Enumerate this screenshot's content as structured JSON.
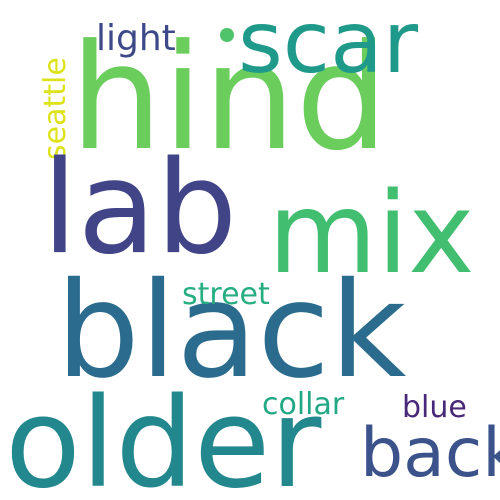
{
  "words": {
    "hind": {
      "text": "hind",
      "color": "#6acd5c"
    },
    "lab": {
      "text": "lab",
      "color": "#414487"
    },
    "mix": {
      "text": "mix",
      "color": "#42be71"
    },
    "black": {
      "text": "black",
      "color": "#2b6c8e"
    },
    "older": {
      "text": "older",
      "color": "#23888e"
    },
    "scar": {
      "text": "scar",
      "color": "#1f9a8a"
    },
    "back": {
      "text": "back",
      "color": "#3b528b"
    },
    "light": {
      "text": "light",
      "color": "#3e4989"
    },
    "street": {
      "text": "street",
      "color": "#27ad81"
    },
    "collar": {
      "text": "collar",
      "color": "#22a884"
    },
    "blue": {
      "text": "blue",
      "color": "#482878"
    },
    "seattle": {
      "text": "seattle",
      "color": "#dde318"
    }
  },
  "dot_color": "#4fc46a"
}
